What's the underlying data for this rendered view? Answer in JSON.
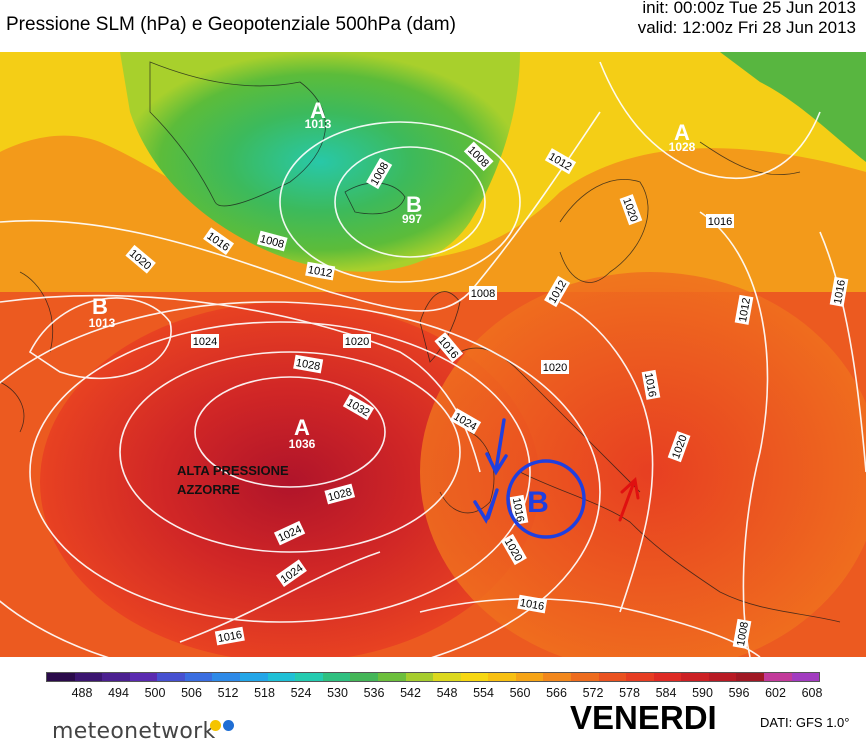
{
  "header": {
    "title": "Pressione SLM (hPa) e Geopotenziale 500hPa (dam)",
    "init": "init: 00:00z Tue 25 Jun 2013",
    "valid": "valid: 12:00z Fri 28 Jun 2013"
  },
  "map": {
    "pressure_centers": [
      {
        "letter": "A",
        "value": "1013"
      },
      {
        "letter": "B",
        "value": "997"
      },
      {
        "letter": "A",
        "value": "1028"
      },
      {
        "letter": "B",
        "value": "1013"
      },
      {
        "letter": "A",
        "value": "1036"
      }
    ],
    "isobar_labels": [
      "1008",
      "1012",
      "1020",
      "1008",
      "1016",
      "1016",
      "1008",
      "1012",
      "1020",
      "1012",
      "1008",
      "1016",
      "1020",
      "1024",
      "1028",
      "1032",
      "1024",
      "1020",
      "1016",
      "1016",
      "1012",
      "1024",
      "1016",
      "1020",
      "1028",
      "1024",
      "1020",
      "1016",
      "1016",
      "1008"
    ],
    "annotation": {
      "line1": "ALTA PRESSIONE",
      "line2": "AZZORRE"
    },
    "overlay_low": "B",
    "overlay_colors": {
      "low_circle": "#1f3fe0",
      "arrows_blue": "#1f3fe0",
      "arrow_red": "#e01010"
    }
  },
  "legend": {
    "ticks": [
      "488",
      "494",
      "500",
      "506",
      "512",
      "518",
      "524",
      "530",
      "536",
      "542",
      "548",
      "554",
      "560",
      "566",
      "572",
      "578",
      "584",
      "590",
      "596",
      "602",
      "608"
    ],
    "colors": [
      "#2a0a4a",
      "#3b1570",
      "#4b2090",
      "#5a2ab0",
      "#4650d0",
      "#3a6de0",
      "#2e8ae8",
      "#23a6e8",
      "#1fc0d6",
      "#24cbb0",
      "#2fc080",
      "#44b658",
      "#6cbf3c",
      "#a6cd2e",
      "#dcd81e",
      "#f7d712",
      "#f8c012",
      "#f6a416",
      "#f2871c",
      "#ee6c1e",
      "#ea5220",
      "#e63d22",
      "#de2a24",
      "#cc2024",
      "#b81a24",
      "#a01824",
      "#c23a9a",
      "#a23cc0"
    ]
  },
  "footer": {
    "logo": "meteonetwork",
    "day": "VENERDI",
    "source": "DATI: GFS 1.0°"
  }
}
